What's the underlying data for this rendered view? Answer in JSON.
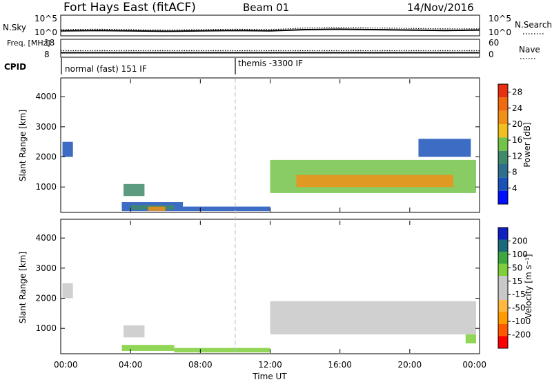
{
  "chart_data": [
    {
      "type": "line",
      "header": {
        "radar": "Fort Hays East (fitACF)",
        "beam": "Beam 01",
        "date": "14/Nov/2016"
      },
      "panel": "noise",
      "ylabel_left": "N.Sky",
      "ylabel_right": "N.Search",
      "left_ticks": [
        "10^5",
        "10^0"
      ],
      "right_ticks": [
        "10^5",
        "10^0"
      ],
      "ylim_log10": [
        0,
        5
      ],
      "series": [
        {
          "name": "N.Sky",
          "style": "solid",
          "x": [
            0,
            2,
            4,
            6,
            8,
            10,
            12,
            14,
            16,
            18,
            20,
            22,
            24
          ],
          "values_log10": [
            1.2,
            1.3,
            1.2,
            1.1,
            1.2,
            1.3,
            1.2,
            1.5,
            1.6,
            1.5,
            1.4,
            1.3,
            1.4
          ]
        },
        {
          "name": "N.Search",
          "style": "dotted",
          "x": [
            0,
            2,
            4,
            6,
            8,
            10,
            12,
            14,
            16,
            18,
            20,
            22,
            24
          ],
          "values_log10": [
            1.5,
            1.6,
            1.5,
            1.4,
            1.5,
            1.6,
            1.5,
            1.9,
            2.0,
            1.9,
            1.8,
            1.7,
            1.7
          ]
        }
      ]
    },
    {
      "type": "line",
      "panel": "frequency",
      "ylabel_left": "Freq. [MHz]",
      "ylabel_right": "Nave",
      "left_ticks": [
        "18",
        "8"
      ],
      "right_ticks": [
        "60",
        "0"
      ],
      "ylim": [
        8,
        18
      ],
      "series": [
        {
          "name": "Freq.",
          "style": "solid",
          "x": [
            0,
            24
          ],
          "values": [
            10.5,
            10.5
          ]
        },
        {
          "name": "Nave",
          "style": "dotted",
          "x": [
            0,
            24
          ],
          "values": [
            22,
            22
          ]
        }
      ]
    },
    {
      "type": "table",
      "panel": "cpid",
      "label": "CPID",
      "segments": [
        {
          "name": "normal (fast) 151 IF",
          "start": 0,
          "end": 10
        },
        {
          "name": "themis -3300 IF",
          "start": 10,
          "end": 24
        }
      ]
    },
    {
      "type": "heatmap",
      "panel": "power",
      "ylabel": "Slant Range [km]",
      "yticks": [
        1000,
        2000,
        3000,
        4000
      ],
      "ylim": [
        180,
        4600
      ],
      "colorbar": {
        "label": "Power [dB]",
        "ticks": [
          4,
          8,
          12,
          16,
          20,
          24,
          28
        ],
        "range": [
          0,
          30
        ],
        "colors": [
          "#0010ff",
          "#1a52b8",
          "#2f6e8e",
          "#3f8a68",
          "#73c348",
          "#f0c020",
          "#f09018",
          "#f06a10",
          "#e83010"
        ]
      },
      "regions": [
        {
          "x": [
            0.1,
            0.7
          ],
          "y": [
            2000,
            2500
          ],
          "level": 1
        },
        {
          "x": [
            3.5,
            7.0
          ],
          "y": [
            200,
            500
          ],
          "level": 1
        },
        {
          "x": [
            4.0,
            6.5
          ],
          "y": [
            250,
            400
          ],
          "level": 3
        },
        {
          "x": [
            5.0,
            6.0
          ],
          "y": [
            200,
            350
          ],
          "level": 6
        },
        {
          "x": [
            3.6,
            4.8
          ],
          "y": [
            700,
            1100
          ],
          "level": 3
        },
        {
          "x": [
            7.0,
            12.0
          ],
          "y": [
            200,
            350
          ],
          "level": 1
        },
        {
          "x": [
            12.0,
            23.8
          ],
          "y": [
            800,
            1900
          ],
          "level": 4
        },
        {
          "x": [
            13.5,
            22.5
          ],
          "y": [
            1000,
            1400
          ],
          "level": 6
        },
        {
          "x": [
            20.5,
            23.5
          ],
          "y": [
            2000,
            2600
          ],
          "level": 1
        }
      ]
    },
    {
      "type": "heatmap",
      "panel": "velocity",
      "ylabel": "Slant Range [km]",
      "xlabel": "Time UT",
      "xticks": [
        "00:00",
        "04:00",
        "08:00",
        "12:00",
        "16:00",
        "20:00",
        "00:00"
      ],
      "yticks": [
        1000,
        2000,
        3000,
        4000
      ],
      "ylim": [
        180,
        4600
      ],
      "colorbar": {
        "label": "Velocity [m s⁻¹]",
        "ticks": [
          "200",
          "100",
          "50",
          "15",
          "-15",
          "-50",
          "-100",
          "-200"
        ],
        "range": [
          -250,
          250
        ],
        "colors": [
          "#ff0000",
          "#ff5a00",
          "#ff9a00",
          "#ffb840",
          "#c8c8c8",
          "#c8c8c8",
          "#7ecf3a",
          "#3ea83e",
          "#1a6a7a",
          "#1020c0"
        ]
      },
      "regions": [
        {
          "x": [
            0.1,
            0.7
          ],
          "y": [
            2000,
            2500
          ],
          "level": 5
        },
        {
          "x": [
            3.5,
            6.5
          ],
          "y": [
            250,
            450
          ],
          "level": 6
        },
        {
          "x": [
            6.5,
            12.0
          ],
          "y": [
            200,
            350
          ],
          "level": 6
        },
        {
          "x": [
            3.6,
            4.8
          ],
          "y": [
            700,
            1100
          ],
          "level": 5
        },
        {
          "x": [
            12.0,
            23.8
          ],
          "y": [
            800,
            1900
          ],
          "level": 5
        },
        {
          "x": [
            23.2,
            23.8
          ],
          "y": [
            500,
            800
          ],
          "level": 6
        }
      ]
    }
  ]
}
